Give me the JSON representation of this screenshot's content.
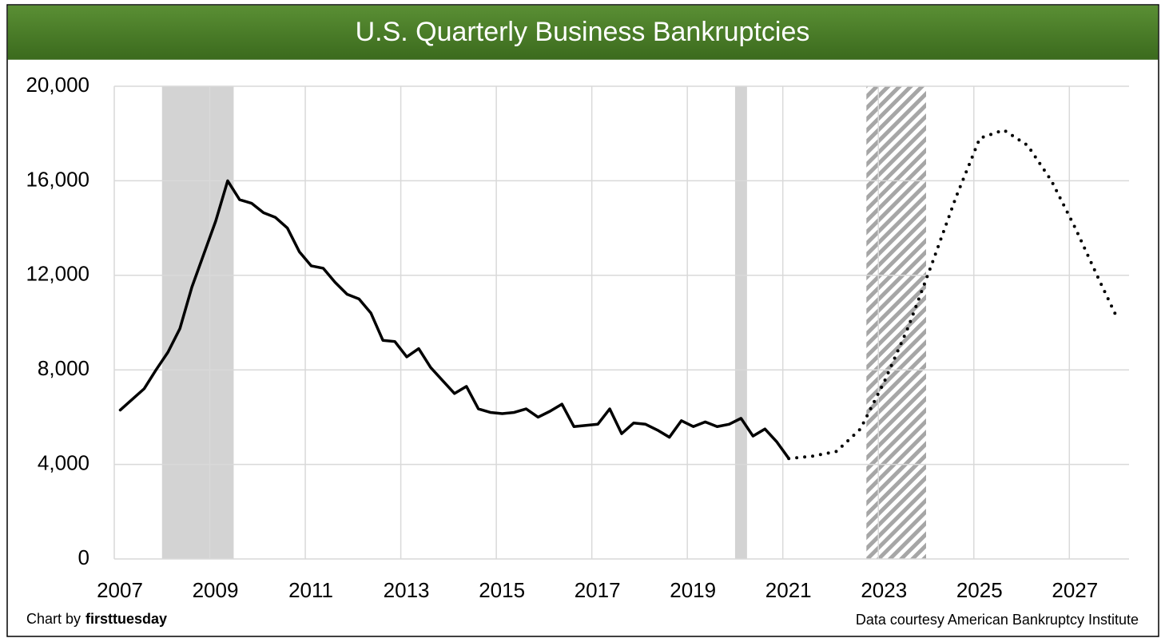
{
  "chart_data": {
    "type": "line",
    "title": "U.S. Quarterly Business Bankruptcies",
    "xlim": [
      2007,
      2028.25
    ],
    "xticks": [
      2007,
      2009,
      2011,
      2013,
      2015,
      2017,
      2019,
      2021,
      2023,
      2025,
      2027
    ],
    "ylim": [
      0,
      20000
    ],
    "yticks": [
      0,
      {
        "value": 4000,
        "label": "4,000"
      },
      {
        "value": 8000,
        "label": "8,000"
      },
      {
        "value": 12000,
        "label": "12,000"
      },
      {
        "value": 16000,
        "label": "16,000"
      },
      {
        "value": 20000,
        "label": "20,000"
      }
    ],
    "grid": true,
    "x": [
      2007.125,
      2007.375,
      2007.625,
      2007.875,
      2008.125,
      2008.375,
      2008.625,
      2008.875,
      2009.125,
      2009.375,
      2009.625,
      2009.875,
      2010.125,
      2010.375,
      2010.625,
      2010.875,
      2011.125,
      2011.375,
      2011.625,
      2011.875,
      2012.125,
      2012.375,
      2012.625,
      2012.875,
      2013.125,
      2013.375,
      2013.625,
      2013.875,
      2014.125,
      2014.375,
      2014.625,
      2014.875,
      2015.125,
      2015.375,
      2015.625,
      2015.875,
      2016.125,
      2016.375,
      2016.625,
      2016.875,
      2017.125,
      2017.375,
      2017.625,
      2017.875,
      2018.125,
      2018.375,
      2018.625,
      2018.875,
      2019.125,
      2019.375,
      2019.625,
      2019.875,
      2020.125,
      2020.375,
      2020.625,
      2020.875,
      2021.125,
      2021.625,
      2022.125,
      2022.625,
      2023.125,
      2023.625,
      2024.125,
      2024.625,
      2025.125,
      2025.625,
      2026.125,
      2026.625,
      2027.125,
      2027.625,
      2028.0
    ],
    "series": [
      {
        "color": "#000000",
        "style": "solid",
        "values": [
          6300,
          6750,
          7200,
          8000,
          8750,
          9750,
          11500,
          12900,
          14300,
          16000,
          15200,
          15050,
          14650,
          14450,
          14000,
          13000,
          12400,
          12300,
          11700,
          11200,
          11000,
          10400,
          9250,
          9200,
          8550,
          8900,
          8100,
          7550,
          7000,
          7300,
          6350,
          6200,
          6150,
          6200,
          6350,
          6000,
          6250,
          6550,
          5600,
          5650,
          5700,
          6350,
          5300,
          5750,
          5700,
          5450,
          5150,
          5850,
          5600,
          5800,
          5600,
          5700,
          5950,
          5200,
          5500,
          4950,
          4250,
          null,
          null,
          null,
          null,
          null,
          null,
          null,
          null,
          null,
          null,
          null,
          null,
          null,
          null
        ]
      },
      {
        "color": "#000000",
        "style": "dotted",
        "values": [
          null,
          null,
          null,
          null,
          null,
          null,
          null,
          null,
          null,
          null,
          null,
          null,
          null,
          null,
          null,
          null,
          null,
          null,
          null,
          null,
          null,
          null,
          null,
          null,
          null,
          null,
          null,
          null,
          null,
          null,
          null,
          null,
          null,
          null,
          null,
          null,
          null,
          null,
          null,
          null,
          null,
          null,
          null,
          null,
          null,
          null,
          null,
          null,
          null,
          null,
          null,
          null,
          null,
          null,
          null,
          null,
          4250,
          4350,
          4550,
          5500,
          7500,
          9800,
          12500,
          15300,
          17800,
          18150,
          17500,
          16000,
          14000,
          11800,
          10200
        ]
      }
    ],
    "shaded_regions": [
      {
        "start": 2008.0,
        "end": 2009.5,
        "style": "solid",
        "color": "#d3d3d3"
      },
      {
        "start": 2020.0,
        "end": 2020.25,
        "style": "solid",
        "color": "#d3d3d3"
      },
      {
        "start": 2022.75,
        "end": 2024.0,
        "style": "hatched",
        "color": "#a6a6a6"
      }
    ],
    "credit": {
      "prefix": "Chart by",
      "brand": "firsttuesday"
    },
    "source": "Data courtesy American Bankruptcy Institute"
  }
}
